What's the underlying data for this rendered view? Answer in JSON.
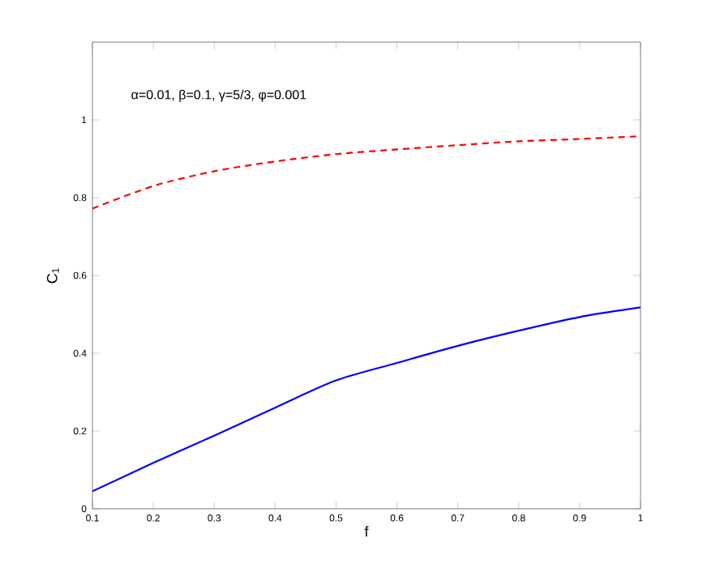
{
  "chart_data": {
    "type": "line",
    "xlabel": "f",
    "ylabel": "C$_{1}$",
    "annotations": [
      "α=0.01, β=0.1, γ=5/3, φ=0.001"
    ],
    "x": [
      0.1,
      0.2,
      0.3,
      0.4,
      0.5,
      0.6,
      0.7,
      0.8,
      0.9,
      1.0
    ],
    "series": [
      {
        "color": "#ff0000",
        "line_style": "dashed",
        "values": [
          0.772,
          0.83,
          0.868,
          0.893,
          0.912,
          0.924,
          0.935,
          0.945,
          0.951,
          0.958
        ]
      },
      {
        "color": "#0000ff",
        "line_style": "solid",
        "values": [
          0.045,
          0.118,
          0.188,
          0.26,
          0.33,
          0.375,
          0.419,
          0.458,
          0.493,
          0.518
        ]
      }
    ],
    "xlim": [
      0.1,
      1
    ],
    "ylim": [
      0,
      1.2
    ],
    "xticks": [
      0.1,
      0.2,
      0.3,
      0.4,
      0.5,
      0.6,
      0.7,
      0.8,
      0.9,
      1
    ],
    "yticks": [
      0,
      0.2,
      0.4,
      0.6,
      0.8,
      1
    ],
    "marker": "none"
  }
}
